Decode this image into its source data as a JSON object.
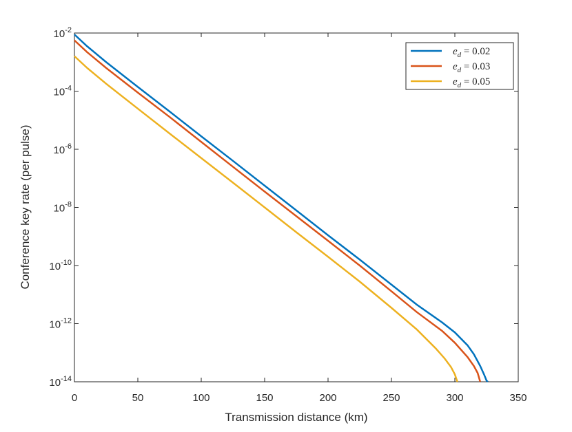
{
  "chart_data": {
    "type": "line",
    "xlabel": "Transmission distance (km)",
    "ylabel": "Conference key rate (per pulse)",
    "xlim": [
      0,
      350
    ],
    "xticks": [
      0,
      50,
      100,
      150,
      200,
      250,
      300,
      350
    ],
    "ylim": [
      1e-14,
      0.01
    ],
    "log_y": true,
    "yticks": [
      {
        "value": 1e-14,
        "label": "10-14"
      },
      {
        "value": 1e-12,
        "label": "10-12"
      },
      {
        "value": 1e-10,
        "label": "10-10"
      },
      {
        "value": 1e-08,
        "label": "10-8"
      },
      {
        "value": 1e-06,
        "label": "10-6"
      },
      {
        "value": 0.0001,
        "label": "10-4"
      },
      {
        "value": 0.01,
        "label": "10-2"
      }
    ],
    "legend": "upper right",
    "series": [
      {
        "name": "ed = 0.02",
        "color": "#0072bd",
        "x": [
          0,
          10,
          25,
          50,
          75,
          100,
          125,
          150,
          175,
          200,
          225,
          250,
          270,
          290,
          300,
          310,
          315,
          320,
          323,
          325,
          326
        ],
        "values": [
          0.0089,
          0.0035,
          0.001,
          0.00014,
          2e-05,
          2.8e-06,
          4e-07,
          5.6e-08,
          7.9e-09,
          1.1e-09,
          1.6e-10,
          2.2e-11,
          4.5e-12,
          1.1e-12,
          5e-13,
          1.8e-13,
          8.9e-14,
          3.5e-14,
          1.8e-14,
          1.1e-14,
          1e-14
        ]
      },
      {
        "name": "ed = 0.03",
        "color": "#d95319",
        "x": [
          0,
          10,
          25,
          50,
          75,
          100,
          125,
          150,
          175,
          200,
          225,
          250,
          270,
          290,
          300,
          310,
          315,
          318,
          320
        ],
        "values": [
          0.0056,
          0.0022,
          0.00063,
          8.9e-05,
          1.3e-05,
          1.8e-06,
          2.5e-07,
          3.5e-08,
          5e-09,
          7.1e-10,
          1e-10,
          1.3e-11,
          2.5e-12,
          5.6e-13,
          2.2e-13,
          7.1e-14,
          3.5e-14,
          2e-14,
          1e-14
        ]
      },
      {
        "name": "ed = 0.05",
        "color": "#edb120",
        "x": [
          0,
          10,
          25,
          50,
          75,
          100,
          125,
          150,
          175,
          200,
          225,
          250,
          270,
          285,
          292,
          297,
          300,
          302
        ],
        "values": [
          0.0016,
          0.00063,
          0.00018,
          2.5e-05,
          3.5e-06,
          5e-07,
          7.1e-08,
          1e-08,
          1.4e-09,
          2e-10,
          2.8e-11,
          3.5e-12,
          6.3e-13,
          1.4e-13,
          6.3e-14,
          3.2e-14,
          1.8e-14,
          1e-14
        ]
      }
    ]
  }
}
